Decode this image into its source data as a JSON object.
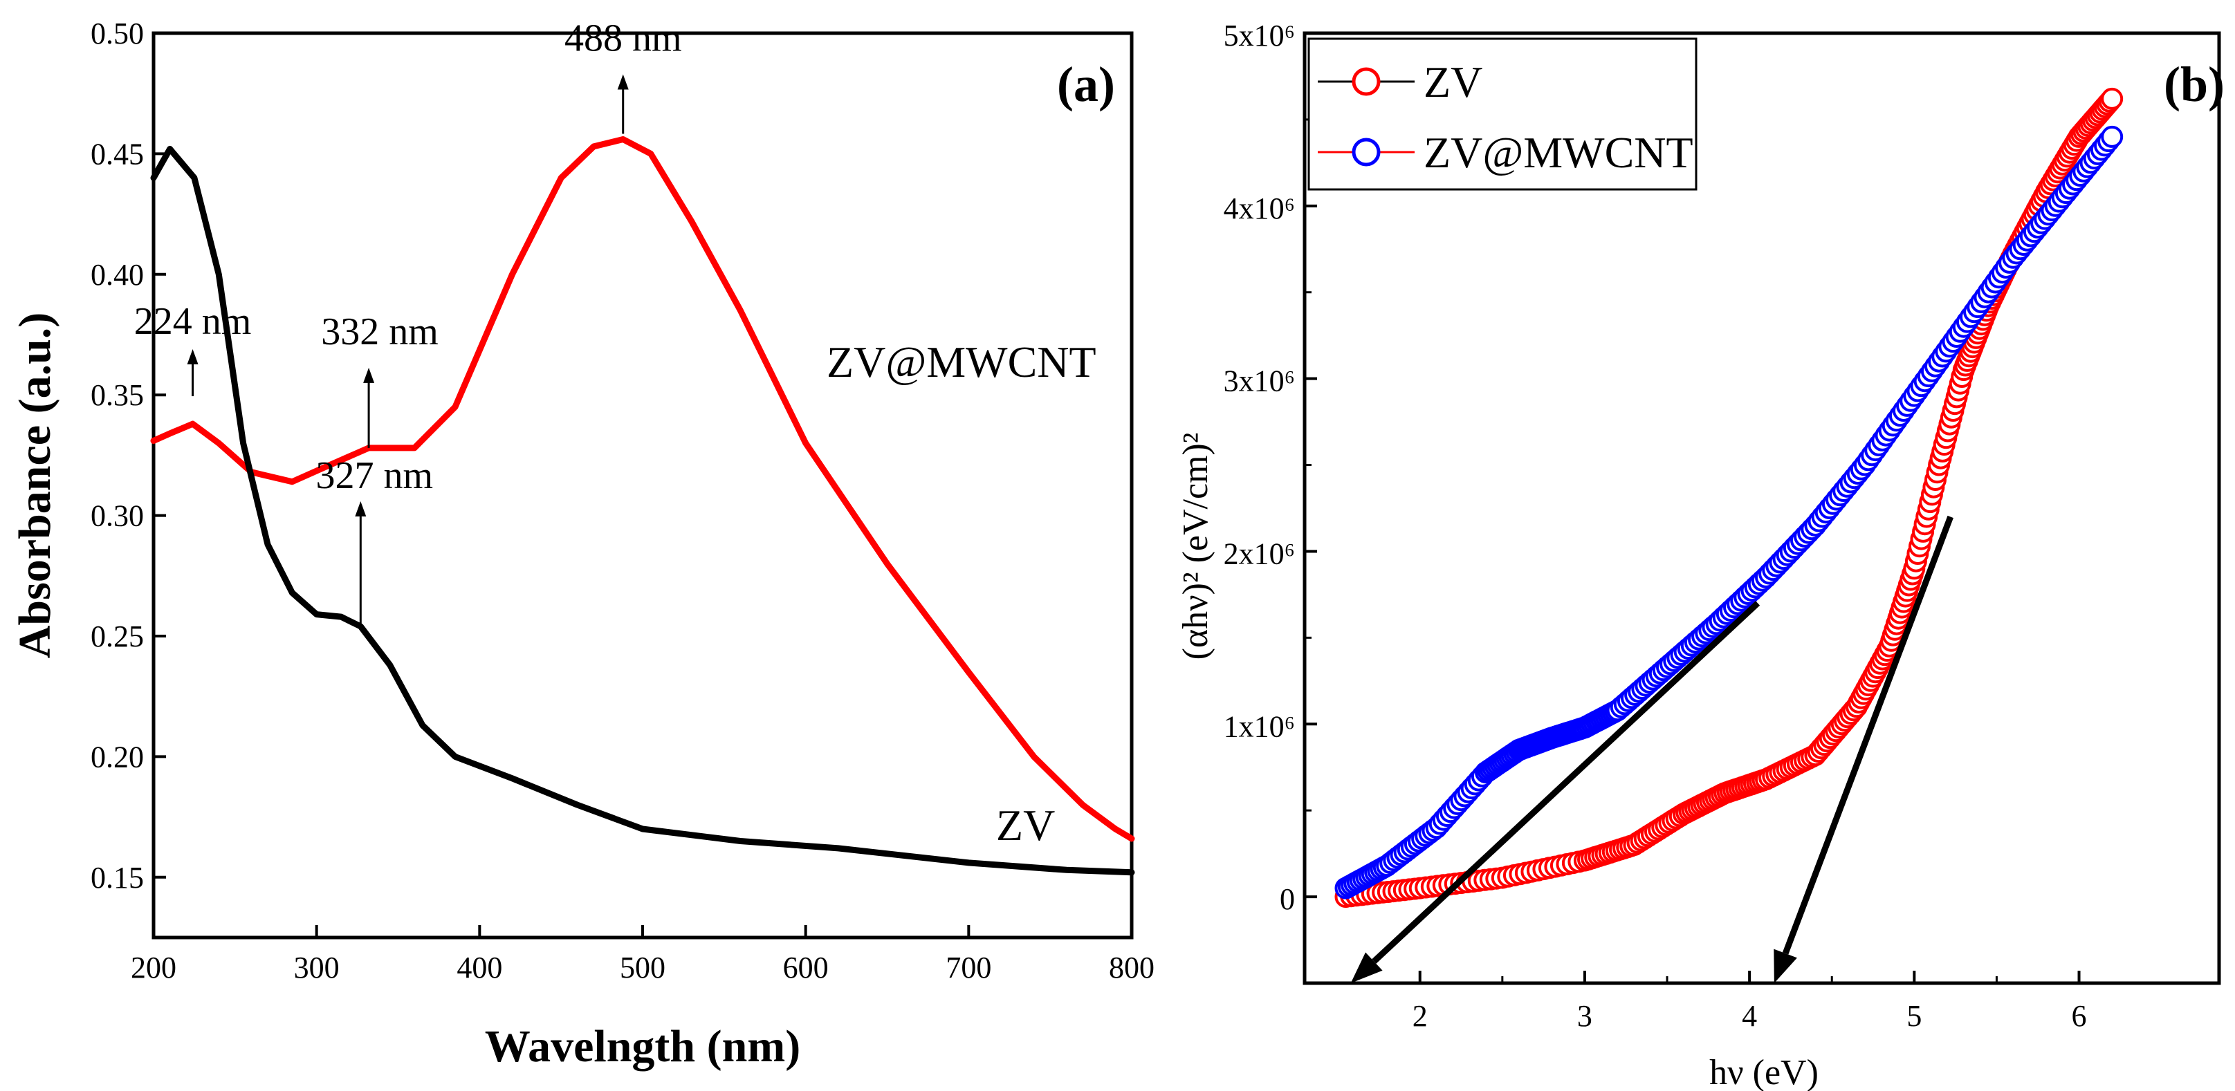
{
  "chart_data": [
    {
      "type": "line",
      "panel_label": "(a)",
      "xlabel": "Wavelngth (nm)",
      "ylabel": "Absorbance (a.u.)",
      "xlim": [
        200,
        800
      ],
      "ylim": [
        0.125,
        0.5
      ],
      "xticks": [
        "200",
        "300",
        "400",
        "500",
        "600",
        "700",
        "800"
      ],
      "yticks": [
        "0.15",
        "0.20",
        "0.25",
        "0.30",
        "0.35",
        "0.40",
        "0.45",
        "0.50"
      ],
      "series": [
        {
          "name": "ZV@MWCNT",
          "color": "#ff0000",
          "x": [
            200,
            210,
            224,
            240,
            260,
            285,
            305,
            332,
            360,
            385,
            420,
            450,
            470,
            488,
            505,
            530,
            560,
            600,
            650,
            700,
            740,
            770,
            790,
            800
          ],
          "y": [
            0.331,
            0.334,
            0.338,
            0.33,
            0.318,
            0.314,
            0.32,
            0.328,
            0.328,
            0.345,
            0.4,
            0.44,
            0.453,
            0.456,
            0.45,
            0.422,
            0.385,
            0.33,
            0.28,
            0.235,
            0.2,
            0.18,
            0.17,
            0.166
          ]
        },
        {
          "name": "ZV",
          "color": "#000000",
          "x": [
            200,
            210,
            225,
            240,
            255,
            270,
            285,
            300,
            315,
            327,
            345,
            365,
            385,
            420,
            460,
            500,
            560,
            620,
            700,
            760,
            800
          ],
          "y": [
            0.44,
            0.452,
            0.44,
            0.4,
            0.33,
            0.288,
            0.268,
            0.259,
            0.258,
            0.254,
            0.238,
            0.213,
            0.2,
            0.191,
            0.18,
            0.17,
            0.165,
            0.162,
            0.156,
            0.153,
            0.152
          ]
        }
      ],
      "annotations": [
        {
          "text": "224 nm",
          "x": 224,
          "y": 0.338
        },
        {
          "text": "332 nm",
          "x": 332,
          "y": 0.328
        },
        {
          "text": "488 nm",
          "x": 488,
          "y": 0.456
        },
        {
          "text": "327 nm",
          "x": 327,
          "y": 0.254
        }
      ],
      "series_labels": [
        "ZV@MWCNT",
        "ZV"
      ]
    },
    {
      "type": "scatter",
      "panel_label": "(b)",
      "xlabel": "hν (eV)",
      "ylabel": "(αhν)² (eV/cm)²",
      "xlim": [
        1.3,
        6.85
      ],
      "ylim": [
        -0.5,
        5.0
      ],
      "xticks": [
        "2",
        "3",
        "4",
        "5",
        "6"
      ],
      "yticks": [
        "0",
        "1x10⁶",
        "2x10⁶",
        "3x10⁶",
        "4x10⁶",
        "5x10⁶"
      ],
      "series": [
        {
          "name": "ZV",
          "color": "#ff0000",
          "x": [
            1.55,
            2.0,
            2.5,
            3.0,
            3.3,
            3.6,
            3.85,
            4.1,
            4.4,
            4.65,
            4.85,
            5.0,
            5.15,
            5.3,
            5.45,
            5.6,
            5.8,
            6.0,
            6.2
          ],
          "y": [
            0.0,
            0.05,
            0.11,
            0.21,
            0.3,
            0.48,
            0.6,
            0.68,
            0.82,
            1.1,
            1.45,
            1.9,
            2.5,
            3.05,
            3.42,
            3.72,
            4.08,
            4.4,
            4.62
          ]
        },
        {
          "name": "ZV@MWCNT",
          "color": "#0000ff",
          "x": [
            1.55,
            1.8,
            2.1,
            2.4,
            2.6,
            2.8,
            3.0,
            3.2,
            3.5,
            3.8,
            4.1,
            4.4,
            4.7,
            5.0,
            5.3,
            5.6,
            5.9,
            6.2
          ],
          "y": [
            0.05,
            0.18,
            0.4,
            0.72,
            0.85,
            0.92,
            0.98,
            1.08,
            1.33,
            1.58,
            1.85,
            2.15,
            2.5,
            2.9,
            3.3,
            3.7,
            4.05,
            4.4
          ]
        }
      ],
      "legend": [
        "ZV",
        "ZV@MWCNT"
      ],
      "tangent_lines": [
        {
          "from": [
            4.05,
            1.7
          ],
          "to": [
            1.58,
            -0.5
          ]
        },
        {
          "from": [
            5.22,
            2.2
          ],
          "to": [
            4.15,
            -0.5
          ]
        }
      ]
    }
  ]
}
